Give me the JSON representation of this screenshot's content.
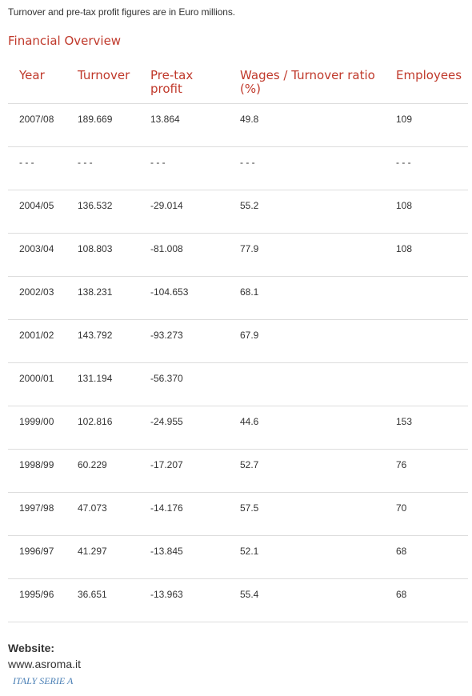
{
  "note": "Turnover and pre-tax profit figures are in Euro millions.",
  "section_title": "Financial Overview",
  "columns": [
    "Year",
    "Turnover",
    "Pre-tax profit",
    "Wages / Turnover ratio (%)",
    "Employees"
  ],
  "rows": [
    [
      "2007/08",
      "189.669",
      "13.864",
      "49.8",
      "109"
    ],
    [
      "- - -",
      "- - -",
      "- - -",
      "- - -",
      "- - -"
    ],
    [
      "2004/05",
      "136.532",
      "-29.014",
      "55.2",
      "108"
    ],
    [
      "2003/04",
      "108.803",
      "-81.008",
      "77.9",
      "108"
    ],
    [
      "2002/03",
      "138.231",
      "-104.653",
      "68.1",
      ""
    ],
    [
      "2001/02",
      "143.792",
      "-93.273",
      "67.9",
      ""
    ],
    [
      "2000/01",
      "131.194",
      "-56.370",
      "",
      ""
    ],
    [
      "1999/00",
      "102.816",
      "-24.955",
      "44.6",
      "153"
    ],
    [
      "1998/99",
      "60.229",
      "-17.207",
      "52.7",
      "76"
    ],
    [
      "1997/98",
      "47.073",
      "-14.176",
      "57.5",
      "70"
    ],
    [
      "1996/97",
      "41.297",
      "-13.845",
      "52.1",
      "68"
    ],
    [
      "1995/96",
      "36.651",
      "-13.963",
      "55.4",
      "68"
    ]
  ],
  "website_label": "Website:",
  "website_url": "www.asroma.it",
  "league_link": "ITALY SERIE A",
  "colors": {
    "accent": "#c0392b",
    "text": "#333333",
    "link": "#4a7fb5",
    "divider": "#dddddd"
  }
}
